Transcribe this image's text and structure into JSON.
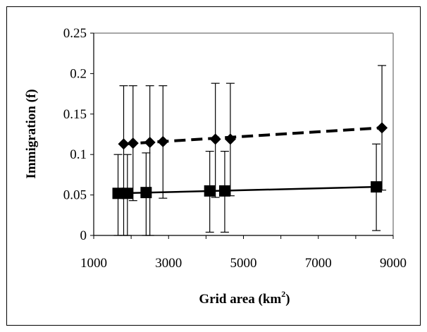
{
  "chart_data": {
    "type": "scatter",
    "xlabel": "Grid area (km",
    "xlabel_sup": "2",
    "xlabel_close": ")",
    "ylabel": "Immigration (f)",
    "xlim": [
      1000,
      9000
    ],
    "ylim": [
      0,
      0.25
    ],
    "x_ticks": [
      "1000",
      "3000",
      "5000",
      "7000",
      "9000"
    ],
    "y_ticks": [
      "0",
      "0.05",
      "0.1",
      "0.15",
      "0.2",
      "0.25"
    ],
    "grid": false,
    "legend": "none",
    "series": [
      {
        "marker": "diamond",
        "line": "dashed",
        "color": "#000000",
        "points": [
          {
            "x": 1800,
            "y": 0.113,
            "lo": 0.0,
            "hi": 0.185
          },
          {
            "x": 2050,
            "y": 0.114,
            "lo": 0.043,
            "hi": 0.185
          },
          {
            "x": 2500,
            "y": 0.115,
            "lo": 0.0,
            "hi": 0.185
          },
          {
            "x": 2850,
            "y": 0.116,
            "lo": 0.046,
            "hi": 0.185
          },
          {
            "x": 4250,
            "y": 0.119,
            "lo": 0.047,
            "hi": 0.188
          },
          {
            "x": 4650,
            "y": 0.119,
            "lo": 0.049,
            "hi": 0.188
          },
          {
            "x": 8700,
            "y": 0.133,
            "lo": 0.056,
            "hi": 0.21
          }
        ]
      },
      {
        "marker": "square",
        "line": "solid",
        "color": "#000000",
        "points": [
          {
            "x": 1650,
            "y": 0.052,
            "lo": 0.0,
            "hi": 0.1
          },
          {
            "x": 1900,
            "y": 0.052,
            "lo": 0.0,
            "hi": 0.1
          },
          {
            "x": 2400,
            "y": 0.053,
            "lo": 0.0,
            "hi": 0.102
          },
          {
            "x": 4100,
            "y": 0.055,
            "lo": 0.004,
            "hi": 0.104
          },
          {
            "x": 4500,
            "y": 0.055,
            "lo": 0.004,
            "hi": 0.104
          },
          {
            "x": 8550,
            "y": 0.06,
            "lo": 0.006,
            "hi": 0.113
          }
        ]
      }
    ]
  }
}
